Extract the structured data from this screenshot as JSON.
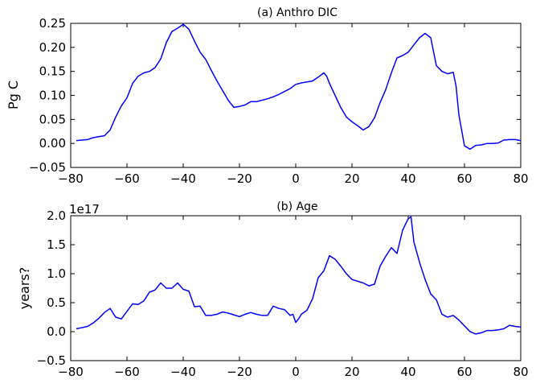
{
  "chart_data": [
    {
      "type": "line",
      "title": "(a) Anthro DIC",
      "ylabel": "Pg C",
      "xlim": [
        -80,
        80
      ],
      "ylim": [
        -0.05,
        0.25
      ],
      "xticks": [
        "−80",
        "−60",
        "−40",
        "−20",
        "0",
        "20",
        "40",
        "60",
        "80"
      ],
      "yticks": [
        "−0.05",
        "0.00",
        "0.05",
        "0.10",
        "0.15",
        "0.20",
        "0.25"
      ],
      "series": [
        {
          "color": "#0000ff",
          "x": [
            -78,
            -74,
            -72,
            -70,
            -68,
            -66,
            -64,
            -62,
            -60,
            -58,
            -56,
            -54,
            -52,
            -50,
            -48,
            -46,
            -44,
            -42,
            -40,
            -38,
            -36,
            -34,
            -32,
            -30,
            -28,
            -26,
            -24,
            -22,
            -20,
            -18,
            -16,
            -14,
            -12,
            -10,
            -8,
            -6,
            -4,
            -2,
            0,
            2,
            4,
            6,
            8,
            10,
            11,
            12,
            14,
            16,
            18,
            20,
            22,
            24,
            26,
            28,
            30,
            32,
            34,
            36,
            38,
            40,
            42,
            44,
            46,
            48,
            50,
            52,
            54,
            56,
            57,
            58,
            60,
            62,
            64,
            66,
            68,
            70,
            72,
            74,
            76,
            78,
            80
          ],
          "y": [
            0.006,
            0.008,
            0.012,
            0.014,
            0.016,
            0.028,
            0.055,
            0.078,
            0.095,
            0.125,
            0.14,
            0.147,
            0.15,
            0.158,
            0.176,
            0.21,
            0.233,
            0.24,
            0.248,
            0.238,
            0.213,
            0.19,
            0.175,
            0.152,
            0.13,
            0.11,
            0.09,
            0.075,
            0.077,
            0.08,
            0.087,
            0.087,
            0.09,
            0.093,
            0.097,
            0.102,
            0.108,
            0.114,
            0.123,
            0.126,
            0.128,
            0.13,
            0.138,
            0.147,
            0.14,
            0.125,
            0.1,
            0.075,
            0.055,
            0.045,
            0.037,
            0.028,
            0.035,
            0.053,
            0.085,
            0.112,
            0.147,
            0.178,
            0.183,
            0.19,
            0.205,
            0.22,
            0.229,
            0.22,
            0.162,
            0.15,
            0.145,
            0.148,
            0.12,
            0.06,
            -0.005,
            -0.012,
            -0.004,
            -0.003,
            0.0,
            0.0,
            0.001,
            0.007,
            0.008,
            0.008,
            0.006
          ]
        }
      ]
    },
    {
      "type": "line",
      "title": "(b) Age",
      "ylabel": "years?",
      "offset_text": "1e17",
      "xlim": [
        -80,
        80
      ],
      "ylim": [
        -0.5,
        2.0
      ],
      "xticks": [
        "−80",
        "−60",
        "−40",
        "−20",
        "0",
        "20",
        "40",
        "60",
        "80"
      ],
      "yticks": [
        "−0.5",
        "0.0",
        "0.5",
        "1.0",
        "1.5",
        "2.0"
      ],
      "series": [
        {
          "color": "#0000ff",
          "x": [
            -78,
            -76,
            -74,
            -72,
            -70,
            -68,
            -66,
            -64,
            -62,
            -60,
            -58,
            -56,
            -54,
            -52,
            -50,
            -48,
            -46,
            -44,
            -42,
            -40,
            -38,
            -36,
            -34,
            -32,
            -30,
            -28,
            -26,
            -24,
            -22,
            -20,
            -18,
            -16,
            -14,
            -12,
            -10,
            -8,
            -6,
            -4,
            -2,
            -1,
            0,
            1,
            2,
            4,
            6,
            8,
            10,
            12,
            14,
            16,
            18,
            20,
            22,
            24,
            26,
            28,
            30,
            32,
            34,
            36,
            38,
            40,
            41,
            42,
            44,
            46,
            48,
            50,
            52,
            54,
            56,
            58,
            60,
            62,
            64,
            66,
            68,
            70,
            72,
            74,
            76,
            78,
            80
          ],
          "y": [
            0.05,
            0.07,
            0.09,
            0.15,
            0.23,
            0.33,
            0.4,
            0.25,
            0.22,
            0.35,
            0.48,
            0.47,
            0.53,
            0.68,
            0.72,
            0.84,
            0.75,
            0.75,
            0.84,
            0.73,
            0.7,
            0.43,
            0.44,
            0.28,
            0.28,
            0.3,
            0.34,
            0.32,
            0.29,
            0.26,
            0.3,
            0.33,
            0.3,
            0.28,
            0.28,
            0.44,
            0.4,
            0.38,
            0.28,
            0.3,
            0.16,
            0.22,
            0.3,
            0.37,
            0.57,
            0.93,
            1.05,
            1.31,
            1.25,
            1.13,
            1.0,
            0.9,
            0.87,
            0.84,
            0.79,
            0.82,
            1.13,
            1.3,
            1.45,
            1.35,
            1.75,
            1.95,
            1.98,
            1.55,
            1.2,
            0.9,
            0.65,
            0.55,
            0.3,
            0.25,
            0.28,
            0.2,
            0.1,
            0.0,
            -0.04,
            -0.02,
            0.02,
            0.02,
            0.03,
            0.05,
            0.11,
            0.09,
            0.08
          ]
        }
      ]
    }
  ]
}
